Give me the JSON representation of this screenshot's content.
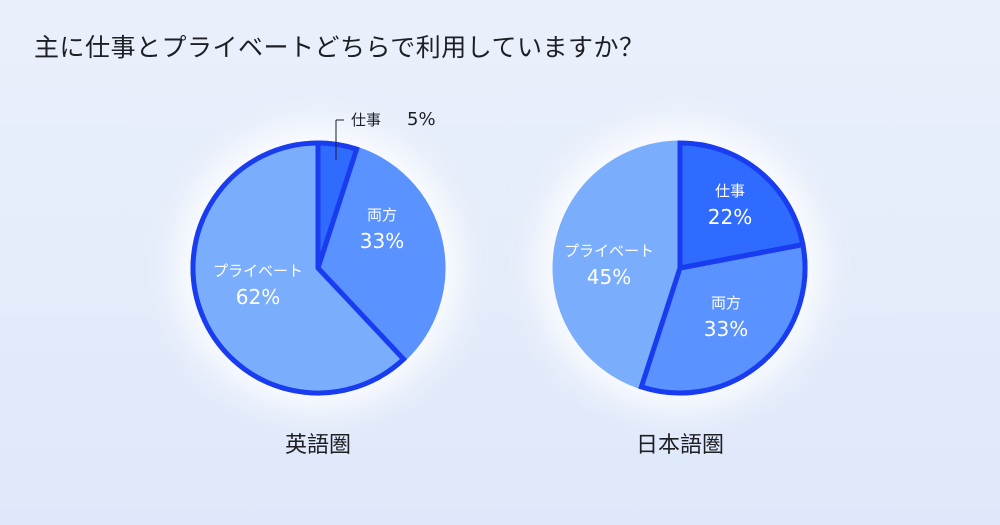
{
  "title": "主に仕事とプライベートどちらで利用していますか？",
  "colors": {
    "highlight_stroke": "#1a3cf0",
    "work": "#2f6bff",
    "both": "#5a92ff",
    "private": "#7aaefc",
    "halo": "#ffffff"
  },
  "chart_data": [
    {
      "type": "pie",
      "title": "英語圏",
      "slices": [
        {
          "label": "仕事",
          "value": 5,
          "value_label": "5%",
          "color": "#2f6bff",
          "highlight": true,
          "label_position": "outside"
        },
        {
          "label": "両方",
          "value": 33,
          "value_label": "33%",
          "color": "#5a92ff",
          "highlight": false,
          "label_position": "inside"
        },
        {
          "label": "プライベート",
          "value": 62,
          "value_label": "62%",
          "color": "#7aaefc",
          "highlight": true,
          "label_position": "inside"
        }
      ]
    },
    {
      "type": "pie",
      "title": "日本語圏",
      "slices": [
        {
          "label": "仕事",
          "value": 22,
          "value_label": "22%",
          "color": "#2f6bff",
          "highlight": true,
          "label_position": "inside"
        },
        {
          "label": "両方",
          "value": 33,
          "value_label": "33%",
          "color": "#5a92ff",
          "highlight": true,
          "label_position": "inside"
        },
        {
          "label": "プライベート",
          "value": 45,
          "value_label": "45%",
          "color": "#7aaefc",
          "highlight": false,
          "label_position": "inside"
        }
      ]
    }
  ]
}
